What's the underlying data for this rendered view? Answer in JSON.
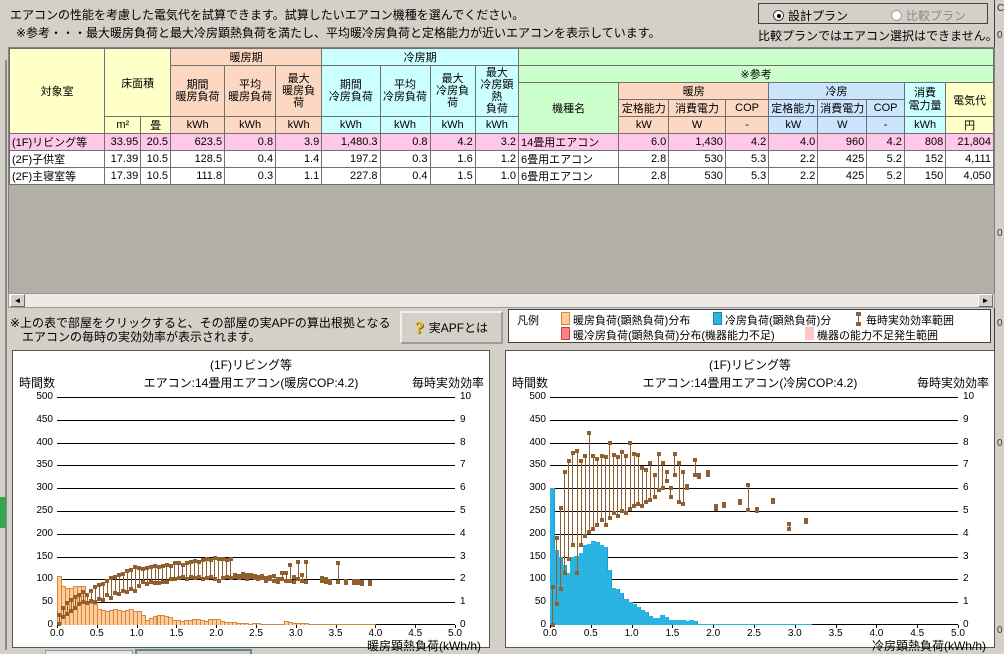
{
  "colors": {
    "heating_bar_fill": "#ffcc99",
    "heating_bar_border": "#d4883c",
    "cooling_bar_fill": "#29b4e4",
    "range_brown": "#8f5f2f",
    "selected_row": "#ffc8e8",
    "header_yellow": "#ffffc8",
    "header_peach": "#fcd7c2",
    "header_cyan": "#ccffff",
    "header_green": "#ccffcc",
    "header_blue": "#cce5ff"
  },
  "header": {
    "line1": "エアコンの性能を考慮した電気代を試算できます。試算したいエアコン機種を選んでください。",
    "line2": "※参考・・・最大暖房負荷と最大冷房顕熱負荷を満たし、平均暖冷房負荷と定格能力が近いエアコンを表示しています。"
  },
  "plan": {
    "design": "設計プラン",
    "compare": "比較プラン",
    "note": "比較プランではエアコン選択はできません。"
  },
  "table": {
    "headers": {
      "room": "対象室",
      "floor_area": "床面積",
      "heating_period": "暖房期",
      "cooling_period": "冷房期",
      "reference": "※参考",
      "period_heating": "期間\n暖房負荷",
      "avg_heating": "平均\n暖房負荷",
      "max_heating": "最大\n暖房負荷",
      "period_cooling": "期間\n冷房負荷",
      "avg_cooling": "平均\n冷房負荷",
      "max_cooling": "最大\n冷房負荷",
      "max_cooling_sensible": "最大\n冷房顕熱\n負荷",
      "model": "機種名",
      "heating": "暖房",
      "cooling": "冷房",
      "rated_capacity": "定格能力",
      "power": "消費電力",
      "cop": "COP",
      "power_consumption": "消費\n電力量",
      "electricity_cost": "電気代"
    },
    "units": [
      "m²",
      "畳",
      "kWh",
      "kWh",
      "kWh",
      "kWh",
      "kWh",
      "kWh",
      "kWh",
      "kW",
      "W",
      "-",
      "kW",
      "W",
      "-",
      "kWh",
      "円"
    ],
    "selected_row_index": 0,
    "rows": [
      [
        "(1F)リビング等",
        "33.95",
        "20.5",
        "623.5",
        "0.8",
        "3.9",
        "1,480.3",
        "0.8",
        "4.2",
        "3.2",
        "14畳用エアコン",
        "6.0",
        "1,430",
        "4.2",
        "4.0",
        "960",
        "4.2",
        "808",
        "21,804"
      ],
      [
        "(2F)子供室",
        "17.39",
        "10.5",
        "128.5",
        "0.4",
        "1.4",
        "197.2",
        "0.3",
        "1.6",
        "1.2",
        "6畳用エアコン",
        "2.8",
        "530",
        "5.3",
        "2.2",
        "425",
        "5.2",
        "152",
        "4,111"
      ],
      [
        "(2F)主寝室等",
        "17.39",
        "10.5",
        "111.8",
        "0.3",
        "1.1",
        "227.8",
        "0.4",
        "1.5",
        "1.0",
        "6畳用エアコン",
        "2.8",
        "530",
        "5.3",
        "2.2",
        "425",
        "5.2",
        "150",
        "4,050"
      ]
    ]
  },
  "note": {
    "line1": "※上の表で部屋をクリックすると、その部屋の実APFの算出根拠となる",
    "line2": "エアコンの毎時の実効効率が表示されます。",
    "apf_button": "実APFとは"
  },
  "legend": {
    "title": "凡例",
    "items": [
      {
        "label": "暖房負荷(顕熱負荷)分布",
        "swatch": "orange"
      },
      {
        "label": "冷房負荷(顕熱負荷)分",
        "swatch": "cyan"
      },
      {
        "label": "毎時実効効率範囲",
        "swatch": "range"
      },
      {
        "label": "暖冷房負荷(顕熱負荷)分布(機器能力不足)",
        "swatch": "red"
      },
      {
        "label": "機器の能力不足発生範囲",
        "swatch": "palepink"
      }
    ]
  },
  "right_edge_fragments": [
    "C",
    "0",
    "0",
    "0",
    "0",
    "0"
  ],
  "chart_data": [
    {
      "type": "bar",
      "title": "(1F)リビング等",
      "subtitle": "エアコン:14畳用エアコン(暖房COP:4.2)",
      "ylabel_left": "時間数",
      "ylabel_right": "毎時実効効率",
      "xlabel": "暖房顕熱負荷(kWh/h)",
      "xlim": [
        0,
        5
      ],
      "xtick": 0.5,
      "ylim_left": [
        0,
        500
      ],
      "ytick_left": 50,
      "ylim_right": [
        0,
        10
      ],
      "ytick_right": 1,
      "grid": true,
      "bin_width": 0.05,
      "bars": {
        "name": "暖房負荷(顕熱負荷)分布",
        "start": 0,
        "values": [
          108,
          85,
          82,
          82,
          85,
          85,
          85,
          52,
          48,
          47,
          35,
          33,
          30,
          33,
          35,
          33,
          30,
          32,
          35,
          30,
          30,
          22,
          12,
          15,
          20,
          23,
          22,
          20,
          18,
          12,
          12,
          8,
          12,
          10,
          13,
          13,
          12,
          8,
          13,
          13,
          13,
          8,
          6,
          6,
          7,
          5,
          5,
          4,
          3,
          4,
          4,
          3,
          3,
          2,
          2,
          2,
          3,
          8,
          6,
          5,
          5,
          4,
          4,
          2,
          1,
          1,
          2,
          1,
          1,
          1,
          1,
          1,
          1,
          1,
          1,
          1,
          2,
          2,
          2,
          1
        ]
      },
      "ranges": {
        "name": "毎時実効効率範囲",
        "points": [
          [
            0.025,
            0.05,
            0.45
          ],
          [
            0.075,
            0.35,
            0.75
          ],
          [
            0.125,
            0.5,
            0.95
          ],
          [
            0.175,
            0.6,
            1.1
          ],
          [
            0.225,
            0.75,
            1.25
          ],
          [
            0.275,
            0.9,
            1.3
          ],
          [
            0.325,
            1.0,
            1.45
          ],
          [
            0.375,
            0.95,
            1.3
          ],
          [
            0.425,
            1.05,
            1.5
          ],
          [
            0.475,
            1.0,
            1.65
          ],
          [
            0.525,
            1.15,
            1.75
          ],
          [
            0.575,
            1.1,
            1.8
          ],
          [
            0.625,
            1.3,
            1.95
          ],
          [
            0.675,
            1.2,
            2.05
          ],
          [
            0.725,
            1.4,
            2.1
          ],
          [
            0.775,
            1.35,
            2.2
          ],
          [
            0.825,
            1.5,
            2.25
          ],
          [
            0.875,
            1.45,
            2.35
          ],
          [
            0.925,
            1.6,
            2.4
          ],
          [
            0.975,
            1.5,
            2.55
          ],
          [
            1.025,
            1.7,
            2.5
          ],
          [
            1.075,
            1.9,
            2.45
          ],
          [
            1.125,
            1.8,
            2.5
          ],
          [
            1.175,
            1.9,
            2.55
          ],
          [
            1.225,
            1.85,
            2.6
          ],
          [
            1.275,
            1.85,
            2.55
          ],
          [
            1.325,
            1.9,
            2.6
          ],
          [
            1.375,
            1.9,
            2.65
          ],
          [
            1.425,
            2.0,
            2.6
          ],
          [
            1.475,
            2.0,
            2.7
          ],
          [
            1.525,
            2.05,
            2.7
          ],
          [
            1.575,
            2.1,
            2.65
          ],
          [
            1.625,
            2.0,
            2.7
          ],
          [
            1.675,
            2.1,
            2.75
          ],
          [
            1.725,
            2.05,
            2.8
          ],
          [
            1.775,
            2.1,
            2.75
          ],
          [
            1.825,
            2.0,
            2.85
          ],
          [
            1.875,
            2.05,
            2.9
          ],
          [
            1.925,
            2.1,
            2.85
          ],
          [
            1.975,
            2.0,
            2.95
          ],
          [
            2.025,
            1.95,
            2.9
          ],
          [
            2.075,
            2.05,
            2.9
          ],
          [
            2.125,
            2.1,
            2.85
          ],
          [
            2.175,
            2.05,
            2.9
          ],
          [
            2.225,
            2.1,
            2.2
          ],
          [
            2.275,
            2.05,
            2.15
          ],
          [
            2.325,
            2.1,
            2.25
          ],
          [
            2.375,
            2.0,
            2.2
          ],
          [
            2.425,
            2.1,
            2.2
          ],
          [
            2.475,
            2.05,
            2.15
          ],
          [
            2.525,
            2.0,
            2.1
          ],
          [
            2.575,
            2.05,
            2.15
          ],
          [
            2.625,
            1.95,
            2.05
          ],
          [
            2.675,
            2.0,
            2.1
          ],
          [
            2.725,
            1.95,
            2.15
          ],
          [
            2.775,
            1.9,
            2.0
          ],
          [
            2.825,
            2.0,
            2.3
          ],
          [
            2.875,
            1.95,
            2.3
          ],
          [
            2.925,
            1.95,
            2.65
          ],
          [
            2.975,
            1.9,
            2.1
          ],
          [
            3.025,
            2.0,
            2.75
          ],
          [
            3.075,
            1.95,
            2.2
          ],
          [
            3.125,
            1.9,
            2.75
          ],
          [
            3.325,
            1.95,
            2.05
          ],
          [
            3.375,
            1.9,
            2.0
          ],
          [
            3.425,
            1.85,
            1.95
          ],
          [
            3.525,
            1.9,
            2.7
          ],
          [
            3.625,
            1.85,
            1.95
          ],
          [
            3.725,
            1.85,
            1.95
          ],
          [
            3.775,
            1.85,
            1.95
          ],
          [
            3.825,
            1.8,
            1.9
          ],
          [
            3.925,
            1.8,
            1.9
          ]
        ]
      }
    },
    {
      "type": "bar",
      "title": "(1F)リビング等",
      "subtitle": "エアコン:14畳用エアコン(冷房COP:4.2)",
      "ylabel_left": "時間数",
      "ylabel_right": "毎時実効効率",
      "xlabel": "冷房顕熱負荷(kWh/h)",
      "xlim": [
        0,
        5
      ],
      "xtick": 0.5,
      "ylim_left": [
        0,
        500
      ],
      "ytick_left": 50,
      "ylim_right": [
        0,
        10
      ],
      "ytick_right": 1,
      "grid": true,
      "bin_width": 0.05,
      "bars": {
        "name": "冷房負荷(顕熱負荷)分布",
        "start": 0,
        "values": [
          300,
          165,
          150,
          132,
          115,
          150,
          152,
          158,
          175,
          178,
          185,
          183,
          176,
          172,
          120,
          82,
          78,
          70,
          56,
          50,
          45,
          40,
          32,
          28,
          20,
          15,
          15,
          22,
          18,
          12,
          10,
          10,
          10,
          8,
          10,
          8,
          3,
          2,
          3,
          3,
          3,
          2,
          2,
          1,
          1,
          2,
          2,
          1,
          1,
          1,
          2,
          1,
          1,
          2,
          1,
          1,
          1,
          1,
          2,
          1,
          1,
          2,
          2,
          1
        ]
      },
      "ranges": {
        "name": "毎時実効効率範囲",
        "points": [
          [
            0.025,
            0.0,
            1.65
          ],
          [
            0.075,
            0.9,
            3.8
          ],
          [
            0.125,
            1.6,
            5.15
          ],
          [
            0.175,
            2.3,
            6.7
          ],
          [
            0.225,
            2.9,
            7.2
          ],
          [
            0.275,
            3.5,
            7.55
          ],
          [
            0.325,
            2.3,
            7.65
          ],
          [
            0.375,
            3.5,
            7.2
          ],
          [
            0.425,
            3.9,
            7.4
          ],
          [
            0.475,
            4.1,
            8.4
          ],
          [
            0.525,
            4.2,
            7.4
          ],
          [
            0.575,
            4.4,
            7.3
          ],
          [
            0.625,
            4.6,
            7.4
          ],
          [
            0.675,
            4.4,
            7.35
          ],
          [
            0.725,
            4.7,
            8.0
          ],
          [
            0.775,
            4.9,
            7.45
          ],
          [
            0.825,
            4.8,
            7.35
          ],
          [
            0.875,
            5.0,
            7.6
          ],
          [
            0.925,
            4.9,
            7.4
          ],
          [
            0.975,
            5.1,
            8.0
          ],
          [
            1.025,
            5.2,
            7.5
          ],
          [
            1.075,
            5.3,
            7.45
          ],
          [
            1.125,
            5.2,
            6.9
          ],
          [
            1.175,
            5.4,
            6.8
          ],
          [
            1.225,
            5.5,
            7.1
          ],
          [
            1.275,
            5.6,
            6.6
          ],
          [
            1.325,
            5.9,
            7.5
          ],
          [
            1.375,
            6.0,
            7.1
          ],
          [
            1.425,
            6.3,
            6.7
          ],
          [
            1.475,
            5.6,
            6.0
          ],
          [
            1.525,
            6.6,
            7.5
          ],
          [
            1.575,
            5.4,
            7.1
          ],
          [
            1.625,
            5.3,
            6.7
          ],
          [
            1.675,
            6.0,
            6.1
          ],
          [
            1.775,
            6.6,
            7.25
          ],
          [
            1.825,
            6.5,
            6.6
          ],
          [
            1.925,
            6.6,
            6.7
          ],
          [
            2.025,
            5.1,
            5.2
          ],
          [
            2.125,
            5.2,
            5.3
          ],
          [
            2.325,
            5.35,
            5.45
          ],
          [
            2.425,
            5.05,
            6.15
          ],
          [
            2.525,
            5.0,
            5.1
          ],
          [
            2.725,
            5.4,
            5.5
          ],
          [
            2.925,
            4.2,
            4.45
          ],
          [
            3.125,
            4.5,
            4.6
          ]
        ]
      }
    }
  ]
}
